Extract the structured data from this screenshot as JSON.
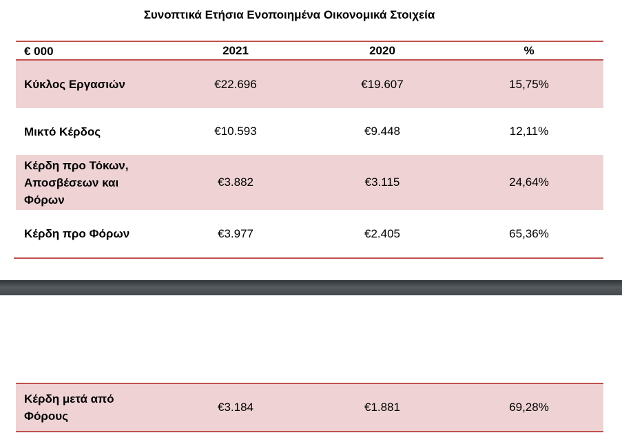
{
  "title": "Συνοπτικά Ετήσια Ενοποιημένα Οικονομικά Στοιχεία",
  "header": [
    "€ 000",
    "2021",
    "2020",
    "%"
  ],
  "rows": [
    [
      "Κύκλος Εργασιών",
      "€22.696",
      "€19.607",
      "15,75%"
    ],
    [
      "Μικτό Κέρδος",
      "€10.593",
      "€9.448",
      "12,11%"
    ],
    [
      "Κέρδη προ Τόκων, Αποσβέσεων και Φόρων",
      "€3.882",
      "€3.115",
      "24,64%"
    ],
    [
      "Κέρδη προ Φόρων",
      "€3.977",
      "€2.405",
      "65,36%"
    ],
    [
      "Κέρδη μετά από Φόρους",
      "€3.184",
      "€1.881",
      "69,28%"
    ]
  ],
  "colors": {
    "accent_line": "#c0504d",
    "row_fill": "#efd3d4"
  }
}
